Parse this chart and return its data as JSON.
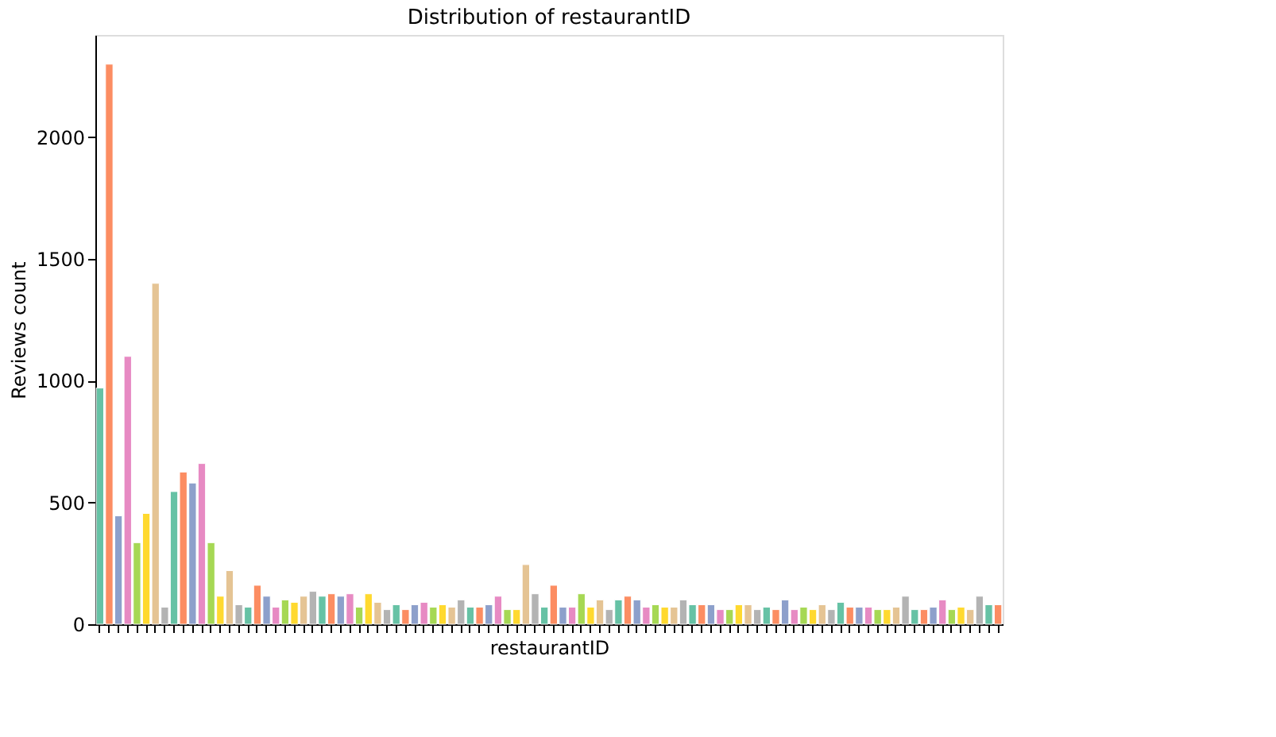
{
  "chart_data": {
    "type": "bar",
    "title": "Distribution of restaurantID",
    "xlabel": "restaurantID",
    "ylabel": "Reviews count",
    "categories": [
      null,
      null,
      null,
      null,
      null,
      null,
      null,
      null,
      null,
      null,
      null,
      null,
      null,
      null,
      null,
      null,
      null,
      null,
      null,
      null,
      null,
      null,
      null,
      null,
      null,
      null,
      null,
      null,
      null,
      null,
      null,
      null,
      null,
      null,
      null,
      null,
      null,
      null,
      null,
      null,
      null,
      null,
      null,
      null,
      null,
      null,
      null,
      null,
      null,
      null,
      null,
      null,
      null,
      null,
      null,
      null,
      null,
      null,
      null,
      null,
      null,
      null,
      null,
      null,
      null,
      null,
      null,
      null,
      null,
      null,
      null,
      null,
      null,
      null,
      null,
      null,
      null,
      null,
      null,
      null,
      null,
      null,
      null,
      null,
      null,
      null,
      null,
      null,
      null,
      null,
      null,
      null,
      null,
      null,
      null,
      null,
      null,
      null
    ],
    "values": [
      970,
      2300,
      445,
      1100,
      335,
      455,
      1400,
      70,
      545,
      625,
      580,
      660,
      335,
      115,
      220,
      80,
      70,
      160,
      115,
      70,
      100,
      90,
      115,
      135,
      115,
      125,
      115,
      125,
      70,
      125,
      90,
      60,
      80,
      60,
      80,
      90,
      70,
      80,
      70,
      100,
      70,
      70,
      80,
      115,
      60,
      60,
      245,
      125,
      70,
      160,
      70,
      70,
      125,
      70,
      100,
      60,
      100,
      115,
      100,
      70,
      80,
      70,
      70,
      100,
      80,
      80,
      80,
      60,
      60,
      80,
      80,
      60,
      70,
      60,
      100,
      60,
      70,
      60,
      80,
      60,
      90,
      70,
      70,
      70,
      60,
      60,
      70,
      115,
      60,
      60,
      70,
      100,
      60,
      70,
      60,
      115,
      80,
      80
    ],
    "colors": [
      "#66c2a5",
      "#fc8d62",
      "#8da0cb",
      "#e78ac3",
      "#a6d854",
      "#ffd92f",
      "#e5c494",
      "#b3b3b3",
      "#66c2a5",
      "#fc8d62",
      "#8da0cb",
      "#e78ac3",
      "#a6d854",
      "#ffd92f",
      "#e5c494",
      "#b3b3b3",
      "#66c2a5",
      "#fc8d62",
      "#8da0cb",
      "#e78ac3",
      "#a6d854",
      "#ffd92f",
      "#e5c494",
      "#b3b3b3",
      "#66c2a5",
      "#fc8d62",
      "#8da0cb",
      "#e78ac3",
      "#a6d854",
      "#ffd92f",
      "#e5c494",
      "#b3b3b3",
      "#66c2a5",
      "#fc8d62",
      "#8da0cb",
      "#e78ac3",
      "#a6d854",
      "#ffd92f",
      "#e5c494",
      "#b3b3b3",
      "#66c2a5",
      "#fc8d62",
      "#8da0cb",
      "#e78ac3",
      "#a6d854",
      "#ffd92f",
      "#e5c494",
      "#b3b3b3",
      "#66c2a5",
      "#fc8d62",
      "#8da0cb",
      "#e78ac3",
      "#a6d854",
      "#ffd92f",
      "#e5c494",
      "#b3b3b3",
      "#66c2a5",
      "#fc8d62",
      "#8da0cb",
      "#e78ac3",
      "#a6d854",
      "#ffd92f",
      "#e5c494",
      "#b3b3b3",
      "#66c2a5",
      "#fc8d62",
      "#8da0cb",
      "#e78ac3",
      "#a6d854",
      "#ffd92f",
      "#e5c494",
      "#b3b3b3",
      "#66c2a5",
      "#fc8d62",
      "#8da0cb",
      "#e78ac3",
      "#a6d854",
      "#ffd92f",
      "#e5c494",
      "#b3b3b3",
      "#66c2a5",
      "#fc8d62",
      "#8da0cb",
      "#e78ac3",
      "#a6d854",
      "#ffd92f",
      "#e5c494",
      "#b3b3b3",
      "#66c2a5",
      "#fc8d62",
      "#8da0cb",
      "#e78ac3",
      "#a6d854",
      "#ffd92f",
      "#e5c494",
      "#b3b3b3",
      "#66c2a5",
      "#fc8d62"
    ],
    "ylim": [
      0,
      2420
    ],
    "yticks": [
      0,
      500,
      1000,
      1500,
      2000
    ],
    "grid": false,
    "legend": false,
    "tick_labels": "y"
  }
}
